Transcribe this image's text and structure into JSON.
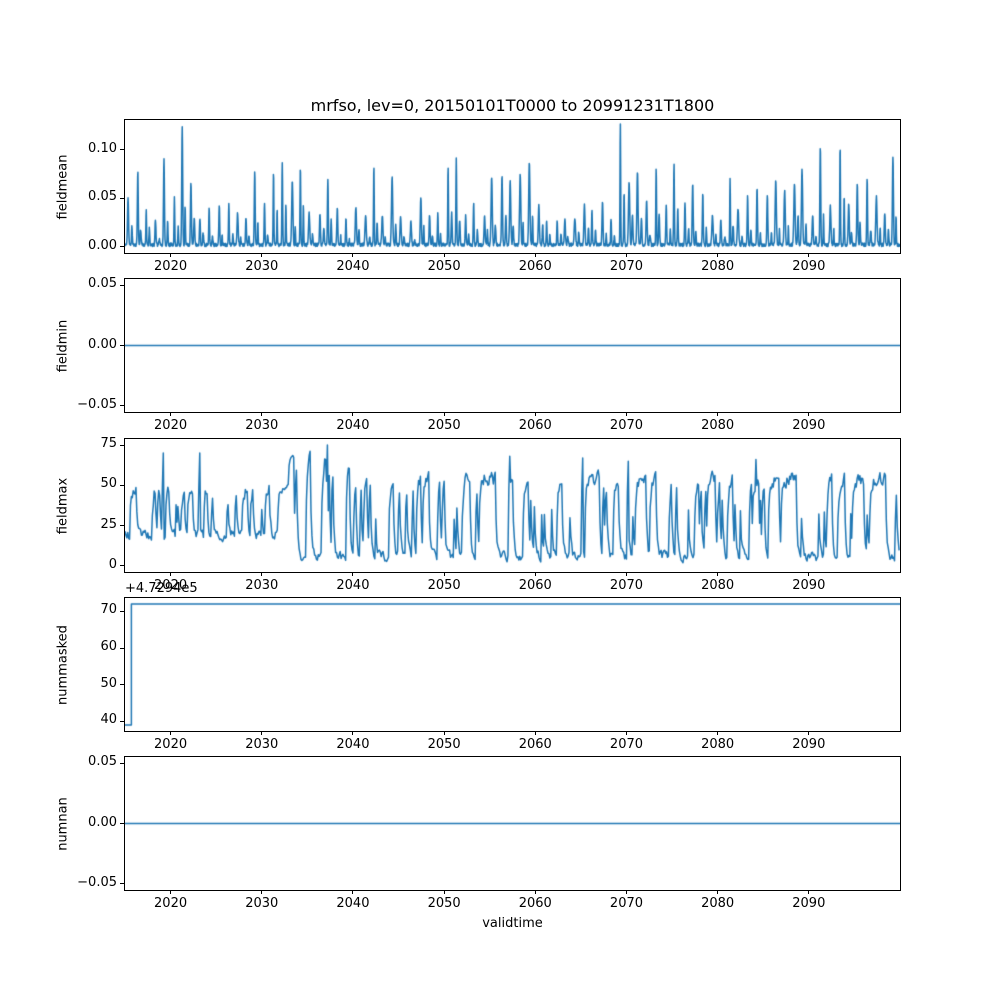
{
  "figure": {
    "title": "mrfso, lev=0, 20150101T0000 to 20991231T1800",
    "xlabel": "validtime",
    "line_color": "#1f77b4",
    "background_color": "#ffffff",
    "text_color": "#000000"
  },
  "chart_data": [
    {
      "type": "line",
      "name": "fieldmean",
      "ylabel": "fieldmean",
      "xlim": [
        2015,
        2100
      ],
      "ylim": [
        -0.0062,
        0.1306
      ],
      "xticks": [
        2020,
        2030,
        2040,
        2050,
        2060,
        2070,
        2080,
        2090
      ],
      "xtick_labels": [
        "2020",
        "2030",
        "2040",
        "2050",
        "2060",
        "2070",
        "2080",
        "2090"
      ],
      "ytick_values": [
        0,
        0.05,
        0.1
      ],
      "ytick_labels": [
        "0.00",
        "0.05",
        "0.10"
      ],
      "description": "Spiky seasonal series: baseline near 0 with one sharp spike cluster per year, typical peaks 0.03-0.09, largest ~0.12 near 2021 and ~0.125 near 2069, ~0.10 near 2091 and 2093.",
      "generator": {
        "kind": "spiky",
        "seed": 11,
        "points_per_year": 36,
        "baseline": 0.002,
        "amp_min": 0.025,
        "amp_max": 0.09,
        "peak_overrides": {
          "2021": 0.121,
          "2069": 0.125,
          "2091": 0.101,
          "2093": 0.102
        }
      }
    },
    {
      "type": "line",
      "name": "fieldmin",
      "ylabel": "fieldmin",
      "xlim": [
        2015,
        2100
      ],
      "ylim": [
        -0.055,
        0.055
      ],
      "xticks": [
        2020,
        2030,
        2040,
        2050,
        2060,
        2070,
        2080,
        2090
      ],
      "xtick_labels": [
        "2020",
        "2030",
        "2040",
        "2050",
        "2060",
        "2070",
        "2080",
        "2090"
      ],
      "ytick_values": [
        -0.05,
        0,
        0.05
      ],
      "ytick_labels": [
        "−0.05",
        "0.00",
        "0.05"
      ],
      "description": "Constant zero line across the full time range.",
      "generator": {
        "kind": "flat",
        "value": 0
      }
    },
    {
      "type": "line",
      "name": "fieldmax",
      "ylabel": "fieldmax",
      "xlim": [
        2015,
        2100
      ],
      "ylim": [
        -3.75,
        78.75
      ],
      "xticks": [
        2020,
        2030,
        2040,
        2050,
        2060,
        2070,
        2080,
        2090
      ],
      "xtick_labels": [
        "2020",
        "2030",
        "2040",
        "2050",
        "2060",
        "2070",
        "2080",
        "2090"
      ],
      "ytick_values": [
        0,
        25,
        50,
        75
      ],
      "ytick_labels": [
        "0",
        "25",
        "50",
        "75"
      ],
      "description": "Dense noisy series oscillating between 0 and 75; mostly 15-55 before 2033, large swings 0-75 during 2033-2040 with max ~75 near 2037, then 0-60 with occasional peaks near 70 after 2040.",
      "generator": {
        "kind": "noisy",
        "seed": 23,
        "points_per_year": 10,
        "epochs": [
          {
            "from": 2015,
            "to": 2033,
            "min": 13,
            "max": 56,
            "spikes": [
              [
                2019,
                70
              ],
              [
                2023,
                70
              ]
            ]
          },
          {
            "from": 2033,
            "to": 2040,
            "min": 0,
            "max": 75,
            "spikes": [
              [
                2037,
                75
              ]
            ]
          },
          {
            "from": 2040,
            "to": 2100,
            "min": 0,
            "max": 62,
            "spikes": [
              [
                2057,
                68
              ],
              [
                2065,
                67
              ],
              [
                2070,
                65
              ],
              [
                2084,
                66
              ]
            ]
          }
        ]
      }
    },
    {
      "type": "line",
      "name": "nummasked",
      "ylabel": "nummasked",
      "xlim": [
        2015,
        2100
      ],
      "ylim": [
        37.35,
        73.65
      ],
      "xticks": [
        2020,
        2030,
        2040,
        2050,
        2060,
        2070,
        2080,
        2090
      ],
      "xtick_labels": [
        "2020",
        "2030",
        "2040",
        "2050",
        "2060",
        "2070",
        "2080",
        "2090"
      ],
      "ytick_values": [
        40,
        50,
        60,
        70
      ],
      "ytick_labels": [
        "40",
        "50",
        "60",
        "70"
      ],
      "offset_text": "+4.7294e5",
      "description": "Step function: starts near 39 (displayed values, axis offset +4.7294e5) then jumps to ~72 shortly after 2015 and stays constant to 2100.",
      "generator": {
        "kind": "step",
        "segments": [
          {
            "from": 2015,
            "to": 2015.7,
            "value": 39
          },
          {
            "from": 2015.7,
            "to": 2100,
            "value": 72
          }
        ]
      }
    },
    {
      "type": "line",
      "name": "numnan",
      "ylabel": "numnan",
      "xlim": [
        2015,
        2100
      ],
      "ylim": [
        -0.055,
        0.055
      ],
      "xticks": [
        2020,
        2030,
        2040,
        2050,
        2060,
        2070,
        2080,
        2090
      ],
      "xtick_labels": [
        "2020",
        "2030",
        "2040",
        "2050",
        "2060",
        "2070",
        "2080",
        "2090"
      ],
      "ytick_values": [
        -0.05,
        0,
        0.05
      ],
      "ytick_labels": [
        "−0.05",
        "0.00",
        "0.05"
      ],
      "description": "Constant zero line across the full time range.",
      "generator": {
        "kind": "flat",
        "value": 0
      }
    }
  ]
}
